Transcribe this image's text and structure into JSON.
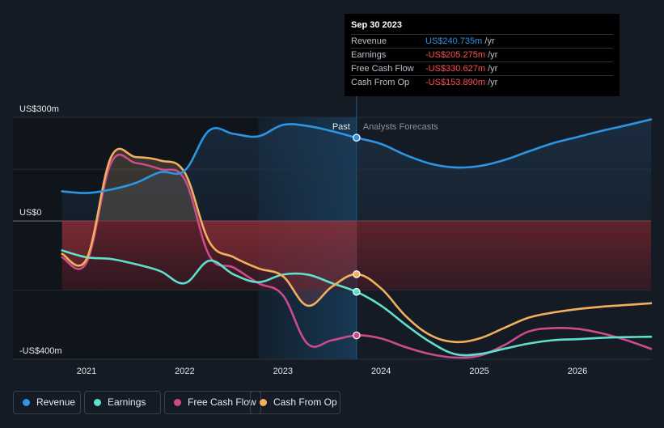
{
  "colors": {
    "background": "#151b24",
    "revenue": "#2b95e6",
    "earnings": "#5fe0cf",
    "free_cash_flow": "#cc4b8a",
    "cash_from_op": "#f2b05e",
    "negative": "#ff4f4f"
  },
  "tooltip": {
    "date": "Sep 30 2023",
    "rows": [
      {
        "label": "Revenue",
        "value": "US$240.735m",
        "unit": "/yr",
        "color": "#2b95e6"
      },
      {
        "label": "Earnings",
        "value": "-US$205.275m",
        "unit": "/yr",
        "color": "#ff4f4f"
      },
      {
        "label": "Free Cash Flow",
        "value": "-US$330.627m",
        "unit": "/yr",
        "color": "#ff4f4f"
      },
      {
        "label": "Cash From Op",
        "value": "-US$153.890m",
        "unit": "/yr",
        "color": "#ff4f4f"
      }
    ]
  },
  "legend": [
    {
      "label": "Revenue",
      "color": "#2b95e6"
    },
    {
      "label": "Earnings",
      "color": "#5fe0cf"
    },
    {
      "label": "Free Cash Flow",
      "color": "#cc4b8a"
    },
    {
      "label": "Cash From Op",
      "color": "#f2b05e"
    }
  ],
  "chart_data": {
    "type": "line",
    "title": "",
    "xlabel": "",
    "ylabel": "",
    "ylim": [
      -400,
      300
    ],
    "y_tick_labels": [
      "US$300m",
      "US$0",
      "-US$400m"
    ],
    "y_tick_values": [
      300,
      0,
      -400
    ],
    "x_tick_labels": [
      "2021",
      "2022",
      "2023",
      "2024",
      "2025",
      "2026"
    ],
    "x_tick_values": [
      2021,
      2022,
      2023,
      2024,
      2025,
      2026
    ],
    "xlim": [
      2020.25,
      2026.75
    ],
    "past_label": "Past",
    "forecast_label": "Analysts Forecasts",
    "past_start": 2022.75,
    "divider_x": 2023.75,
    "series": [
      {
        "name": "Revenue",
        "key": "revenue",
        "x": [
          2020.75,
          2021.0,
          2021.25,
          2021.5,
          2021.75,
          2022.0,
          2022.25,
          2022.5,
          2022.75,
          2023.0,
          2023.25,
          2023.5,
          2023.75,
          2024.0,
          2024.25,
          2024.5,
          2024.75,
          2025.0,
          2025.25,
          2025.5,
          2025.75,
          2026.0,
          2026.25,
          2026.5,
          2026.75
        ],
        "values": [
          86,
          81,
          91,
          110,
          141,
          146,
          262,
          252,
          245,
          278,
          275,
          260,
          241,
          223,
          191,
          166,
          155,
          159,
          176,
          201,
          225,
          243,
          261,
          277,
          294
        ]
      },
      {
        "name": "Earnings",
        "key": "earnings",
        "x": [
          2020.75,
          2021.0,
          2021.25,
          2021.5,
          2021.75,
          2022.0,
          2022.25,
          2022.5,
          2022.75,
          2023.0,
          2023.25,
          2023.5,
          2023.75,
          2024.0,
          2024.25,
          2024.5,
          2024.75,
          2025.0,
          2025.25,
          2025.5,
          2025.75,
          2026.0,
          2026.25,
          2026.5,
          2026.75
        ],
        "values": [
          -85,
          -105,
          -110,
          -125,
          -145,
          -180,
          -115,
          -155,
          -177,
          -155,
          -155,
          -180,
          -205,
          -245,
          -300,
          -350,
          -385,
          -385,
          -370,
          -355,
          -345,
          -342,
          -338,
          -336,
          -335
        ]
      },
      {
        "name": "Free Cash Flow",
        "key": "free_cash_flow",
        "x": [
          2020.75,
          2021.0,
          2021.25,
          2021.5,
          2021.75,
          2022.0,
          2022.25,
          2022.5,
          2022.75,
          2023.0,
          2023.25,
          2023.5,
          2023.75,
          2024.0,
          2024.25,
          2024.5,
          2024.75,
          2025.0,
          2025.25,
          2025.5,
          2025.75,
          2026.0,
          2026.25,
          2026.5,
          2026.75
        ],
        "values": [
          -105,
          -120,
          168,
          168,
          150,
          120,
          -100,
          -135,
          -180,
          -215,
          -355,
          -345,
          -331,
          -340,
          -365,
          -385,
          -395,
          -390,
          -360,
          -320,
          -310,
          -312,
          -325,
          -345,
          -370
        ]
      },
      {
        "name": "Cash From Op",
        "key": "cash_from_op",
        "x": [
          2020.75,
          2021.0,
          2021.25,
          2021.5,
          2021.75,
          2022.0,
          2022.25,
          2022.5,
          2022.75,
          2023.0,
          2023.25,
          2023.5,
          2023.75,
          2024.0,
          2024.25,
          2024.5,
          2024.75,
          2025.0,
          2025.25,
          2025.5,
          2025.75,
          2026.0,
          2026.25,
          2026.5,
          2026.75
        ],
        "values": [
          -95,
          -110,
          185,
          185,
          175,
          140,
          -60,
          -105,
          -137,
          -160,
          -245,
          -190,
          -154,
          -195,
          -275,
          -330,
          -350,
          -340,
          -310,
          -280,
          -265,
          -255,
          -248,
          -243,
          -238
        ]
      }
    ],
    "tooltip_points": {
      "x": 2023.75,
      "revenue": 241,
      "earnings": -205,
      "free_cash_flow": -331,
      "cash_from_op": -154
    }
  }
}
